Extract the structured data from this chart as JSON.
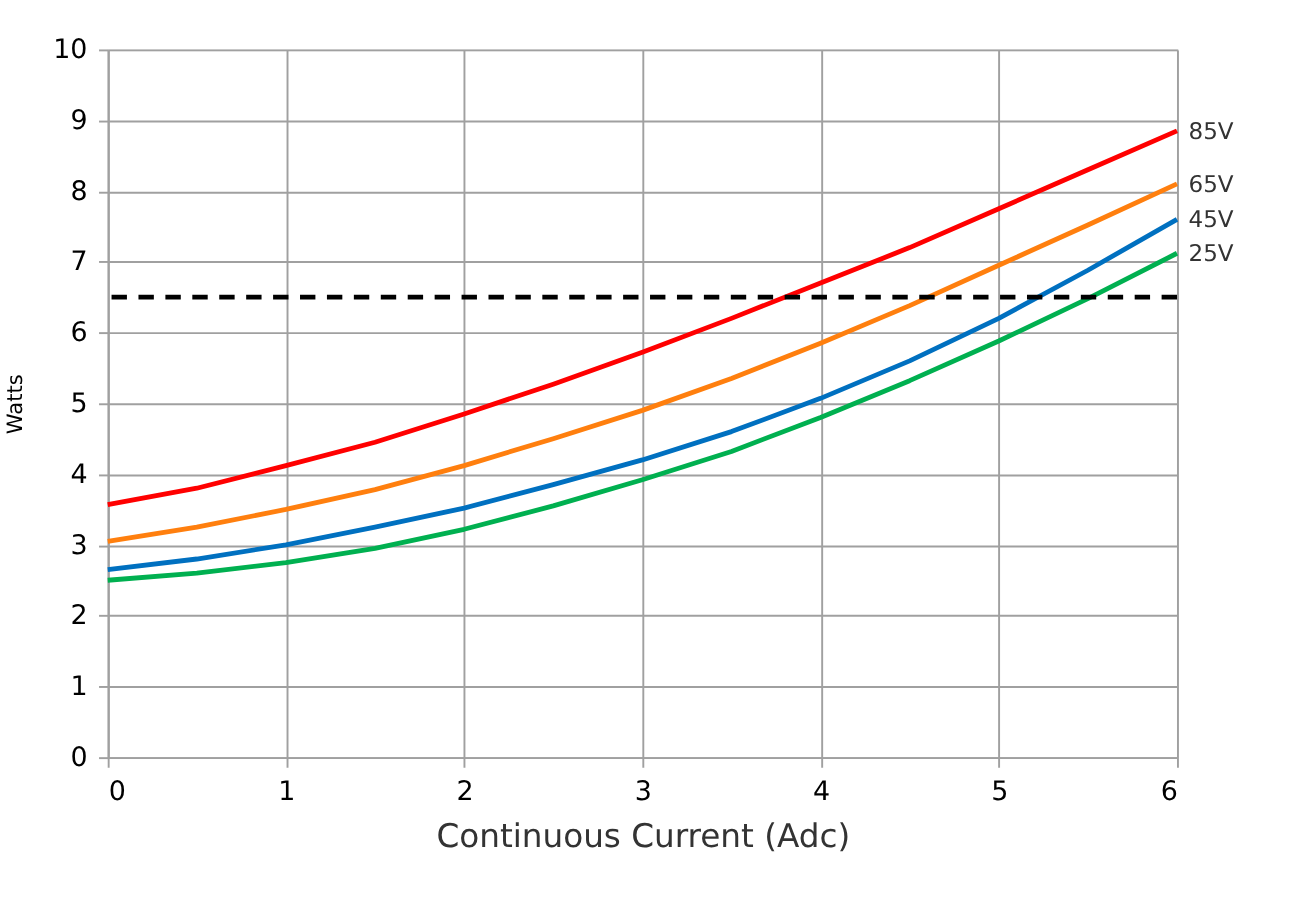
{
  "chart_data": {
    "type": "line",
    "xlabel": "Continuous Current (Adc)",
    "ylabel": "Watts",
    "x": [
      0,
      0.5,
      1,
      1.5,
      2,
      2.5,
      3,
      3.5,
      4,
      4.5,
      5,
      5.5,
      6
    ],
    "series": [
      {
        "name": "85V",
        "color": "#ff0000",
        "values": [
          3.57,
          3.8,
          4.12,
          4.45,
          4.85,
          5.27,
          5.72,
          6.2,
          6.7,
          7.2,
          7.75,
          8.3,
          8.85
        ]
      },
      {
        "name": "65V",
        "color": "#ff7f0e",
        "values": [
          3.05,
          3.25,
          3.5,
          3.78,
          4.12,
          4.5,
          4.9,
          5.35,
          5.85,
          6.38,
          6.95,
          7.52,
          8.1
        ]
      },
      {
        "name": "45V",
        "color": "#0070c0",
        "values": [
          2.65,
          2.8,
          3.0,
          3.25,
          3.52,
          3.85,
          4.2,
          4.6,
          5.07,
          5.6,
          6.2,
          6.88,
          7.6
        ]
      },
      {
        "name": "25V",
        "color": "#00b050",
        "values": [
          2.5,
          2.6,
          2.75,
          2.95,
          3.22,
          3.55,
          3.92,
          4.32,
          4.8,
          5.32,
          5.88,
          6.48,
          7.12
        ]
      }
    ],
    "ref_lines": [
      {
        "axis": "y",
        "value": 6.5,
        "color": "#000000",
        "line_style": "dashed"
      }
    ],
    "xlim": [
      0,
      6
    ],
    "xticks": [
      0,
      1,
      2,
      3,
      4,
      5,
      6
    ],
    "ylim": [
      0,
      10
    ],
    "yticks": [
      0,
      1,
      2,
      3,
      4,
      5,
      6,
      7,
      8,
      9,
      10
    ],
    "grid": true,
    "legend": false,
    "marker": "none",
    "line_style": "solid"
  }
}
